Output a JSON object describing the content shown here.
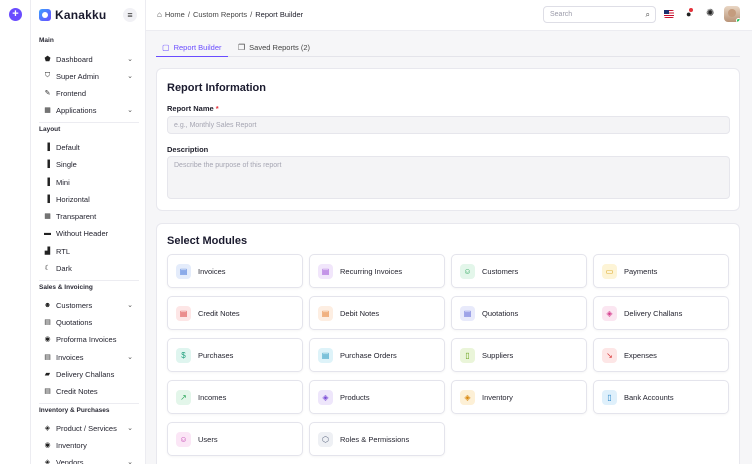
{
  "sidebar": {
    "brand": "Kanakku",
    "sections": [
      {
        "title": "Main",
        "items": [
          {
            "label": "Dashboard",
            "icon": "home-icon",
            "chevron": true
          },
          {
            "label": "Super Admin",
            "icon": "user-shield-icon",
            "chevron": true
          },
          {
            "label": "Frontend",
            "icon": "brush-icon",
            "chevron": false
          },
          {
            "label": "Applications",
            "icon": "apps-icon",
            "chevron": true
          }
        ]
      },
      {
        "title": "Layout",
        "items": [
          {
            "label": "Default",
            "icon": "layout-default-icon",
            "chevron": false
          },
          {
            "label": "Single",
            "icon": "layout-single-icon",
            "chevron": false
          },
          {
            "label": "Mini",
            "icon": "layout-mini-icon",
            "chevron": false
          },
          {
            "label": "Horizontal",
            "icon": "layout-horizontal-icon",
            "chevron": false
          },
          {
            "label": "Transparent",
            "icon": "layout-transparent-icon",
            "chevron": false
          },
          {
            "label": "Without Header",
            "icon": "layout-without-header-icon",
            "chevron": false
          },
          {
            "label": "RTL",
            "icon": "rtl-icon",
            "chevron": false
          },
          {
            "label": "Dark",
            "icon": "moon-icon",
            "chevron": false
          }
        ]
      },
      {
        "title": "Sales & Invoicing",
        "items": [
          {
            "label": "Customers",
            "icon": "users-icon",
            "chevron": true
          },
          {
            "label": "Quotations",
            "icon": "quotation-icon",
            "chevron": false
          },
          {
            "label": "Proforma Invoices",
            "icon": "proforma-icon",
            "chevron": false
          },
          {
            "label": "Invoices",
            "icon": "invoice-icon",
            "chevron": true
          },
          {
            "label": "Delivery Challans",
            "icon": "truck-icon",
            "chevron": false
          },
          {
            "label": "Credit Notes",
            "icon": "credit-note-icon",
            "chevron": false
          }
        ]
      },
      {
        "title": "Inventory & Purchases",
        "items": [
          {
            "label": "Product / Services",
            "icon": "box-icon",
            "chevron": true
          },
          {
            "label": "Inventory",
            "icon": "inventory-icon",
            "chevron": false
          },
          {
            "label": "Vendors",
            "icon": "vendor-icon",
            "chevron": true
          }
        ]
      }
    ]
  },
  "header": {
    "breadcrumb": {
      "home": "Home",
      "sep": "/",
      "parent": "Custom Reports",
      "current": "Report Builder"
    },
    "search_placeholder": "Search"
  },
  "tabs": [
    {
      "label": "Report Builder",
      "icon": "report-icon",
      "active": true
    },
    {
      "label": "Saved Reports (2)",
      "icon": "saved-icon",
      "active": false
    }
  ],
  "report_info": {
    "title": "Report Information",
    "name_label": "Report Name",
    "required_mark": "*",
    "name_placeholder": "e.g., Monthly Sales Report",
    "description_label": "Description",
    "description_placeholder": "Describe the purpose of this report"
  },
  "modules": {
    "title": "Select Modules",
    "items": [
      {
        "label": "Invoices",
        "icon": "invoice-icon",
        "glyph": "▤",
        "bg": "#e4ecfb",
        "fg": "#3b6fd8"
      },
      {
        "label": "Recurring Invoices",
        "icon": "recurring-invoice-icon",
        "glyph": "▤",
        "bg": "#f1e6fb",
        "fg": "#9b4bd6"
      },
      {
        "label": "Customers",
        "icon": "customers-icon",
        "glyph": "☺",
        "bg": "#e3f6ea",
        "fg": "#2aa55a"
      },
      {
        "label": "Payments",
        "icon": "payment-card-icon",
        "glyph": "▭",
        "bg": "#fdf4d6",
        "fg": "#d79c0a"
      },
      {
        "label": "Credit Notes",
        "icon": "credit-note-icon",
        "glyph": "▤",
        "bg": "#fde6e6",
        "fg": "#d93a3a"
      },
      {
        "label": "Debit Notes",
        "icon": "debit-note-icon",
        "glyph": "▤",
        "bg": "#fdeee2",
        "fg": "#e57b2b"
      },
      {
        "label": "Quotations",
        "icon": "quotation-icon",
        "glyph": "▤",
        "bg": "#e8eafb",
        "fg": "#5a63d6"
      },
      {
        "label": "Delivery Challans",
        "icon": "package-icon",
        "glyph": "◈",
        "bg": "#fbe6f1",
        "fg": "#d63e8e"
      },
      {
        "label": "Purchases",
        "icon": "dollar-icon",
        "glyph": "$",
        "bg": "#dff5ef",
        "fg": "#1f9f7c"
      },
      {
        "label": "Purchase Orders",
        "icon": "purchase-order-icon",
        "glyph": "▤",
        "bg": "#def3f9",
        "fg": "#2295bd"
      },
      {
        "label": "Suppliers",
        "icon": "suppliers-icon",
        "glyph": "▯",
        "bg": "#eaf5d9",
        "fg": "#6aa31c"
      },
      {
        "label": "Expenses",
        "icon": "trending-down-icon",
        "glyph": "↘",
        "bg": "#fde6e6",
        "fg": "#d93a3a"
      },
      {
        "label": "Incomes",
        "icon": "trending-up-icon",
        "glyph": "↗",
        "bg": "#e3f6ea",
        "fg": "#2aa55a"
      },
      {
        "label": "Products",
        "icon": "cube-icon",
        "glyph": "◈",
        "bg": "#eee6fb",
        "fg": "#7a4bd6"
      },
      {
        "label": "Inventory",
        "icon": "inventory-icon",
        "glyph": "◈",
        "bg": "#fdf0d6",
        "fg": "#d8860a"
      },
      {
        "label": "Bank Accounts",
        "icon": "bank-icon",
        "glyph": "▯",
        "bg": "#dff0fb",
        "fg": "#2584c8"
      },
      {
        "label": "Users",
        "icon": "users-icon",
        "glyph": "☺",
        "bg": "#fbe6f6",
        "fg": "#c23bb0"
      },
      {
        "label": "Roles & Permissions",
        "icon": "shield-icon",
        "glyph": "⬡",
        "bg": "#eef0f4",
        "fg": "#55607a"
      }
    ]
  }
}
